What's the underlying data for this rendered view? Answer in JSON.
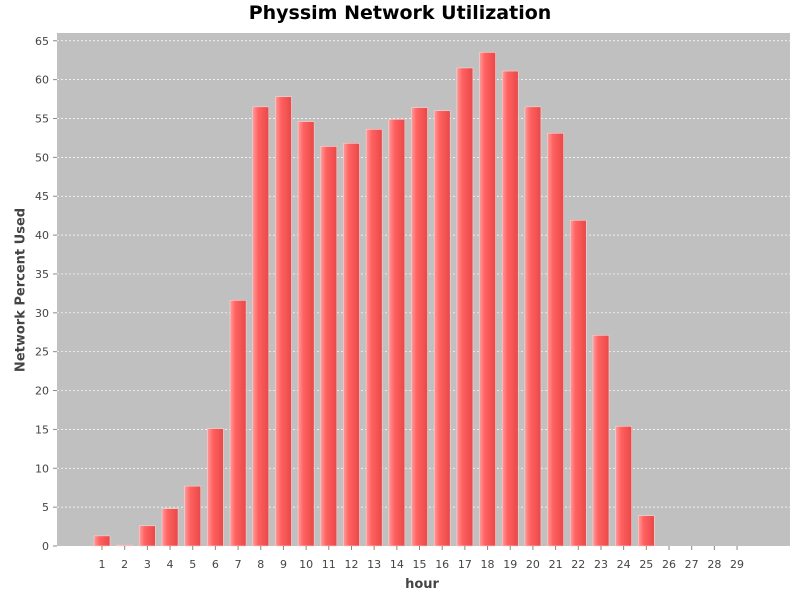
{
  "chart_data": {
    "type": "bar",
    "title": "Physsim Network Utilization",
    "xlabel": "hour",
    "ylabel": "Network Percent Used",
    "categories": [
      "1",
      "2",
      "3",
      "4",
      "5",
      "6",
      "7",
      "8",
      "9",
      "10",
      "11",
      "12",
      "13",
      "14",
      "15",
      "16",
      "17",
      "18",
      "19",
      "20",
      "21",
      "22",
      "23",
      "24",
      "25",
      "26",
      "27",
      "28",
      "29"
    ],
    "values": [
      1.3,
      0.1,
      2.6,
      4.8,
      7.7,
      15.1,
      31.6,
      56.5,
      57.8,
      54.6,
      51.4,
      51.8,
      53.6,
      54.9,
      56.4,
      56.0,
      61.5,
      63.5,
      61.1,
      56.5,
      53.1,
      41.9,
      27.1,
      15.4,
      3.9,
      0,
      0,
      0,
      0
    ],
    "ylim": [
      0,
      66
    ],
    "yticks": [
      0,
      5,
      10,
      15,
      20,
      25,
      30,
      35,
      40,
      45,
      50,
      55,
      60,
      65
    ],
    "grid": true,
    "colors": {
      "bar": "#ff6060",
      "bar_light": "#ff9a9a",
      "bar_dark": "#e84848",
      "plot_bg": "#c0c0c0",
      "grid": "#ffffff"
    }
  }
}
